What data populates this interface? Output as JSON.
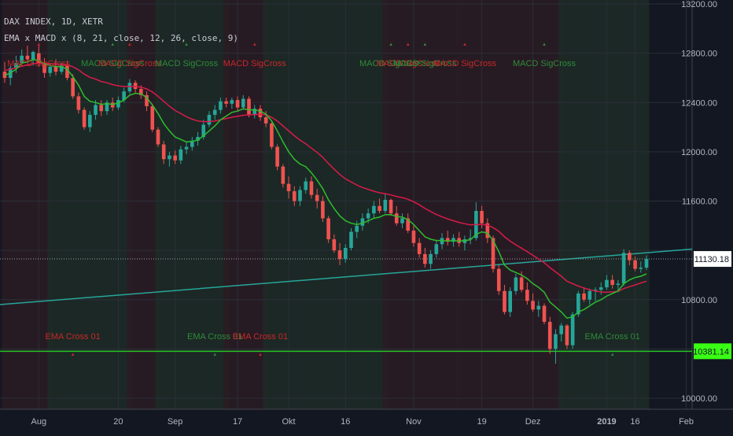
{
  "header": {
    "line1": "DAX INDEX, 1D, XETR",
    "line2": "EMA x MACD x (8, 21, close, 12, 26, close, 9)"
  },
  "colors": {
    "background": "#131722",
    "grid": "#2a2e39",
    "bull_candle": "#26a69a",
    "bear_candle": "#ef5350",
    "ema_fast": "#2ebd2e",
    "ema_slow": "#d81b4a",
    "trendline": "#26a69a",
    "support_line": "#25c425",
    "bull_zone": "#1e2a26",
    "bear_zone": "#2a1c24",
    "signal_green": "#2e8b3a",
    "signal_red": "#c62828",
    "last_price_label": "#ffffff",
    "support_label": "#39ff14"
  },
  "chart_data": {
    "type": "candlestick",
    "title": "DAX INDEX, 1D, XETR",
    "indicator": "EMA x MACD x (8, 21, close, 12, 26, close, 9)",
    "ylim": [
      10000,
      13200
    ],
    "y_ticks": [
      "13200.00",
      "12800.00",
      "12400.00",
      "12000.00",
      "11600.00",
      "10800.00",
      "10000.00"
    ],
    "x_ticks": [
      "Aug",
      "20",
      "Sep",
      "17",
      "Okt",
      "16",
      "Nov",
      "19",
      "Dez",
      "2019",
      "16",
      "Feb"
    ],
    "last_price": "11130.18",
    "support_price": "10381.14",
    "grid": true,
    "candles": [
      {
        "o": 12650,
        "h": 12730,
        "l": 12560,
        "c": 12600
      },
      {
        "o": 12600,
        "h": 12700,
        "l": 12540,
        "c": 12680
      },
      {
        "o": 12680,
        "h": 12780,
        "l": 12640,
        "c": 12720
      },
      {
        "o": 12720,
        "h": 12830,
        "l": 12690,
        "c": 12780
      },
      {
        "o": 12780,
        "h": 12860,
        "l": 12720,
        "c": 12750
      },
      {
        "o": 12750,
        "h": 12820,
        "l": 12700,
        "c": 12810
      },
      {
        "o": 12800,
        "h": 12860,
        "l": 12690,
        "c": 12720
      },
      {
        "o": 12720,
        "h": 12760,
        "l": 12600,
        "c": 12640
      },
      {
        "o": 12640,
        "h": 12720,
        "l": 12610,
        "c": 12690
      },
      {
        "o": 12690,
        "h": 12750,
        "l": 12620,
        "c": 12650
      },
      {
        "o": 12650,
        "h": 12720,
        "l": 12630,
        "c": 12700
      },
      {
        "o": 12700,
        "h": 12740,
        "l": 12580,
        "c": 12600
      },
      {
        "o": 12600,
        "h": 12630,
        "l": 12430,
        "c": 12450
      },
      {
        "o": 12450,
        "h": 12480,
        "l": 12310,
        "c": 12340
      },
      {
        "o": 12340,
        "h": 12360,
        "l": 12180,
        "c": 12200
      },
      {
        "o": 12200,
        "h": 12330,
        "l": 12160,
        "c": 12300
      },
      {
        "o": 12300,
        "h": 12420,
        "l": 12260,
        "c": 12380
      },
      {
        "o": 12380,
        "h": 12420,
        "l": 12290,
        "c": 12330
      },
      {
        "o": 12330,
        "h": 12420,
        "l": 12300,
        "c": 12400
      },
      {
        "o": 12400,
        "h": 12440,
        "l": 12330,
        "c": 12360
      },
      {
        "o": 12360,
        "h": 12450,
        "l": 12340,
        "c": 12420
      },
      {
        "o": 12420,
        "h": 12520,
        "l": 12400,
        "c": 12490
      },
      {
        "o": 12490,
        "h": 12590,
        "l": 12470,
        "c": 12560
      },
      {
        "o": 12560,
        "h": 12580,
        "l": 12480,
        "c": 12510
      },
      {
        "o": 12510,
        "h": 12540,
        "l": 12430,
        "c": 12460
      },
      {
        "o": 12460,
        "h": 12490,
        "l": 12330,
        "c": 12370
      },
      {
        "o": 12370,
        "h": 12390,
        "l": 12160,
        "c": 12180
      },
      {
        "o": 12180,
        "h": 12200,
        "l": 12040,
        "c": 12060
      },
      {
        "o": 12060,
        "h": 12090,
        "l": 11900,
        "c": 11940
      },
      {
        "o": 11940,
        "h": 12000,
        "l": 11880,
        "c": 11970
      },
      {
        "o": 11970,
        "h": 12010,
        "l": 11900,
        "c": 11930
      },
      {
        "o": 11930,
        "h": 12050,
        "l": 11900,
        "c": 12020
      },
      {
        "o": 12020,
        "h": 12080,
        "l": 11980,
        "c": 12040
      },
      {
        "o": 12040,
        "h": 12120,
        "l": 12010,
        "c": 12090
      },
      {
        "o": 12090,
        "h": 12160,
        "l": 12050,
        "c": 12120
      },
      {
        "o": 12120,
        "h": 12260,
        "l": 12100,
        "c": 12220
      },
      {
        "o": 12220,
        "h": 12330,
        "l": 12200,
        "c": 12300
      },
      {
        "o": 12300,
        "h": 12380,
        "l": 12260,
        "c": 12340
      },
      {
        "o": 12340,
        "h": 12440,
        "l": 12310,
        "c": 12410
      },
      {
        "o": 12410,
        "h": 12440,
        "l": 12360,
        "c": 12390
      },
      {
        "o": 12390,
        "h": 12440,
        "l": 12350,
        "c": 12420
      },
      {
        "o": 12420,
        "h": 12450,
        "l": 12330,
        "c": 12360
      },
      {
        "o": 12360,
        "h": 12460,
        "l": 12340,
        "c": 12430
      },
      {
        "o": 12430,
        "h": 12450,
        "l": 12280,
        "c": 12300
      },
      {
        "o": 12300,
        "h": 12380,
        "l": 12270,
        "c": 12350
      },
      {
        "o": 12350,
        "h": 12380,
        "l": 12250,
        "c": 12280
      },
      {
        "o": 12280,
        "h": 12330,
        "l": 12200,
        "c": 12230
      },
      {
        "o": 12230,
        "h": 12240,
        "l": 12020,
        "c": 12040
      },
      {
        "o": 12040,
        "h": 12060,
        "l": 11850,
        "c": 11880
      },
      {
        "o": 11880,
        "h": 11900,
        "l": 11710,
        "c": 11740
      },
      {
        "o": 11740,
        "h": 11800,
        "l": 11620,
        "c": 11680
      },
      {
        "o": 11680,
        "h": 11720,
        "l": 11560,
        "c": 11600
      },
      {
        "o": 11600,
        "h": 11720,
        "l": 11560,
        "c": 11690
      },
      {
        "o": 11690,
        "h": 11790,
        "l": 11660,
        "c": 11760
      },
      {
        "o": 11760,
        "h": 11800,
        "l": 11620,
        "c": 11650
      },
      {
        "o": 11650,
        "h": 11700,
        "l": 11540,
        "c": 11600
      },
      {
        "o": 11600,
        "h": 11640,
        "l": 11430,
        "c": 11460
      },
      {
        "o": 11460,
        "h": 11480,
        "l": 11260,
        "c": 11290
      },
      {
        "o": 11290,
        "h": 11330,
        "l": 11180,
        "c": 11200
      },
      {
        "o": 11200,
        "h": 11260,
        "l": 11080,
        "c": 11130
      },
      {
        "o": 11130,
        "h": 11250,
        "l": 11100,
        "c": 11220
      },
      {
        "o": 11220,
        "h": 11380,
        "l": 11200,
        "c": 11350
      },
      {
        "o": 11350,
        "h": 11440,
        "l": 11300,
        "c": 11400
      },
      {
        "o": 11400,
        "h": 11500,
        "l": 11360,
        "c": 11460
      },
      {
        "o": 11460,
        "h": 11540,
        "l": 11420,
        "c": 11500
      },
      {
        "o": 11500,
        "h": 11600,
        "l": 11460,
        "c": 11560
      },
      {
        "o": 11560,
        "h": 11620,
        "l": 11500,
        "c": 11520
      },
      {
        "o": 11520,
        "h": 11660,
        "l": 11500,
        "c": 11610
      },
      {
        "o": 11610,
        "h": 11620,
        "l": 11480,
        "c": 11500
      },
      {
        "o": 11500,
        "h": 11560,
        "l": 11400,
        "c": 11420
      },
      {
        "o": 11420,
        "h": 11500,
        "l": 11380,
        "c": 11460
      },
      {
        "o": 11460,
        "h": 11500,
        "l": 11340,
        "c": 11360
      },
      {
        "o": 11360,
        "h": 11400,
        "l": 11230,
        "c": 11260
      },
      {
        "o": 11260,
        "h": 11300,
        "l": 11140,
        "c": 11170
      },
      {
        "o": 11170,
        "h": 11220,
        "l": 11060,
        "c": 11090
      },
      {
        "o": 11090,
        "h": 11200,
        "l": 11050,
        "c": 11170
      },
      {
        "o": 11170,
        "h": 11280,
        "l": 11140,
        "c": 11250
      },
      {
        "o": 11250,
        "h": 11340,
        "l": 11210,
        "c": 11300
      },
      {
        "o": 11300,
        "h": 11360,
        "l": 11240,
        "c": 11270
      },
      {
        "o": 11270,
        "h": 11330,
        "l": 11230,
        "c": 11300
      },
      {
        "o": 11300,
        "h": 11350,
        "l": 11230,
        "c": 11260
      },
      {
        "o": 11260,
        "h": 11320,
        "l": 11200,
        "c": 11290
      },
      {
        "o": 11290,
        "h": 11370,
        "l": 11250,
        "c": 11300
      },
      {
        "o": 11300,
        "h": 11590,
        "l": 11280,
        "c": 11520
      },
      {
        "o": 11520,
        "h": 11560,
        "l": 11380,
        "c": 11420
      },
      {
        "o": 11420,
        "h": 11460,
        "l": 11260,
        "c": 11300
      },
      {
        "o": 11300,
        "h": 11320,
        "l": 11020,
        "c": 11050
      },
      {
        "o": 11050,
        "h": 11080,
        "l": 10840,
        "c": 10870
      },
      {
        "o": 10870,
        "h": 10920,
        "l": 10680,
        "c": 10700
      },
      {
        "o": 10700,
        "h": 10900,
        "l": 10660,
        "c": 10870
      },
      {
        "o": 10870,
        "h": 11010,
        "l": 10840,
        "c": 10980
      },
      {
        "o": 10980,
        "h": 11030,
        "l": 10860,
        "c": 10880
      },
      {
        "o": 10880,
        "h": 10940,
        "l": 10760,
        "c": 10790
      },
      {
        "o": 10790,
        "h": 10850,
        "l": 10700,
        "c": 10720
      },
      {
        "o": 10720,
        "h": 10790,
        "l": 10660,
        "c": 10750
      },
      {
        "o": 10750,
        "h": 10770,
        "l": 10600,
        "c": 10620
      },
      {
        "o": 10620,
        "h": 10660,
        "l": 10360,
        "c": 10400
      },
      {
        "o": 10400,
        "h": 10560,
        "l": 10280,
        "c": 10520
      },
      {
        "o": 10520,
        "h": 10610,
        "l": 10460,
        "c": 10590
      },
      {
        "o": 10590,
        "h": 10600,
        "l": 10400,
        "c": 10430
      },
      {
        "o": 10430,
        "h": 10700,
        "l": 10400,
        "c": 10680
      },
      {
        "o": 10680,
        "h": 10870,
        "l": 10660,
        "c": 10850
      },
      {
        "o": 10850,
        "h": 10900,
        "l": 10780,
        "c": 10800
      },
      {
        "o": 10800,
        "h": 10890,
        "l": 10760,
        "c": 10870
      },
      {
        "o": 10870,
        "h": 10900,
        "l": 10790,
        "c": 10880
      },
      {
        "o": 10880,
        "h": 10940,
        "l": 10840,
        "c": 10900
      },
      {
        "o": 10900,
        "h": 11000,
        "l": 10880,
        "c": 10960
      },
      {
        "o": 10960,
        "h": 11000,
        "l": 10890,
        "c": 10920
      },
      {
        "o": 10920,
        "h": 10960,
        "l": 10860,
        "c": 10930
      },
      {
        "o": 10930,
        "h": 11210,
        "l": 10910,
        "c": 11180
      },
      {
        "o": 11180,
        "h": 11200,
        "l": 11080,
        "c": 11120
      },
      {
        "o": 11120,
        "h": 11150,
        "l": 11030,
        "c": 11050
      },
      {
        "o": 11050,
        "h": 11110,
        "l": 11020,
        "c": 11060
      },
      {
        "o": 11060,
        "h": 11160,
        "l": 11040,
        "c": 11130
      }
    ],
    "ema_fast": [
      12620,
      12640,
      12670,
      12720,
      12730,
      12750,
      12740,
      12715,
      12700,
      12690,
      12690,
      12670,
      12610,
      12540,
      12450,
      12410,
      12400,
      12385,
      12390,
      12385,
      12395,
      12420,
      12460,
      12475,
      12470,
      12440,
      12380,
      12310,
      12230,
      12170,
      12120,
      12100,
      12080,
      12085,
      12095,
      12130,
      12170,
      12210,
      12260,
      12290,
      12320,
      12330,
      12350,
      12340,
      12340,
      12330,
      12305,
      12250,
      12170,
      12080,
      12000,
      11940,
      11900,
      11880,
      11830,
      11770,
      11700,
      11610,
      11540,
      11480,
      11440,
      11420,
      11410,
      11420,
      11440,
      11460,
      11470,
      11490,
      11490,
      11475,
      11470,
      11450,
      11410,
      11360,
      11310,
      11290,
      11280,
      11280,
      11275,
      11280,
      11275,
      11280,
      11285,
      11330,
      11350,
      11340,
      11280,
      11190,
      11080,
      11040,
      11020,
      11000,
      10970,
      10930,
      10900,
      10860,
      10780,
      10740,
      10700,
      10650,
      10660,
      10700,
      10720,
      10750,
      10780,
      10800,
      10830,
      10850,
      10870,
      10930,
      10960,
      10980,
      10990,
      11010
    ],
    "ema_slow": [
      12660,
      12670,
      12680,
      12695,
      12705,
      12715,
      12720,
      12718,
      12715,
      12712,
      12710,
      12705,
      12690,
      12665,
      12630,
      12605,
      12590,
      12570,
      12560,
      12545,
      12535,
      12530,
      12530,
      12530,
      12525,
      12510,
      12485,
      12450,
      12410,
      12370,
      12335,
      12310,
      12285,
      12265,
      12250,
      12245,
      12245,
      12250,
      12260,
      12270,
      12280,
      12288,
      12296,
      12300,
      12302,
      12303,
      12300,
      12280,
      12250,
      12210,
      12170,
      12130,
      12095,
      12065,
      12030,
      11995,
      11955,
      11905,
      11860,
      11815,
      11780,
      11755,
      11730,
      11710,
      11695,
      11680,
      11668,
      11660,
      11650,
      11638,
      11628,
      11615,
      11595,
      11570,
      11540,
      11515,
      11492,
      11473,
      11455,
      11440,
      11427,
      11416,
      11407,
      11410,
      11410,
      11405,
      11385,
      11355,
      11310,
      11275,
      11245,
      11218,
      11190,
      11160,
      11130,
      11100,
      11060,
      11025,
      10990,
      10950,
      10930,
      10910,
      10895,
      10880,
      10870,
      10862,
      10860,
      10862,
      10868,
      10890,
      10905,
      10920,
      10935,
      10950
    ],
    "trendline": {
      "from": 10760,
      "to": 11210
    },
    "macd_signals": [
      {
        "label": "MACD SigCross",
        "color": "red"
      },
      {
        "label": "MACD SigCross",
        "color": "green"
      },
      {
        "label": "MACD SigCross",
        "color": "red"
      },
      {
        "label": "MACD SigCross",
        "color": "green"
      },
      {
        "label": "MACD SigCross",
        "color": "red"
      },
      {
        "label": "MACD SigCross",
        "color": "green"
      },
      {
        "label": "MACD SigCross",
        "color": "red"
      },
      {
        "label": "MACD SigCross",
        "color": "green"
      },
      {
        "label": "MACD SigCross",
        "color": "red"
      },
      {
        "label": "MACD SigCross",
        "color": "green"
      }
    ],
    "ema_signals": [
      {
        "label": "EMA Cross 01",
        "color": "red"
      },
      {
        "label": "EMA Cross 01",
        "color": "green"
      },
      {
        "label": "EMA Cross 01",
        "color": "red"
      },
      {
        "label": "EMA Cross 01",
        "color": "green"
      }
    ]
  }
}
